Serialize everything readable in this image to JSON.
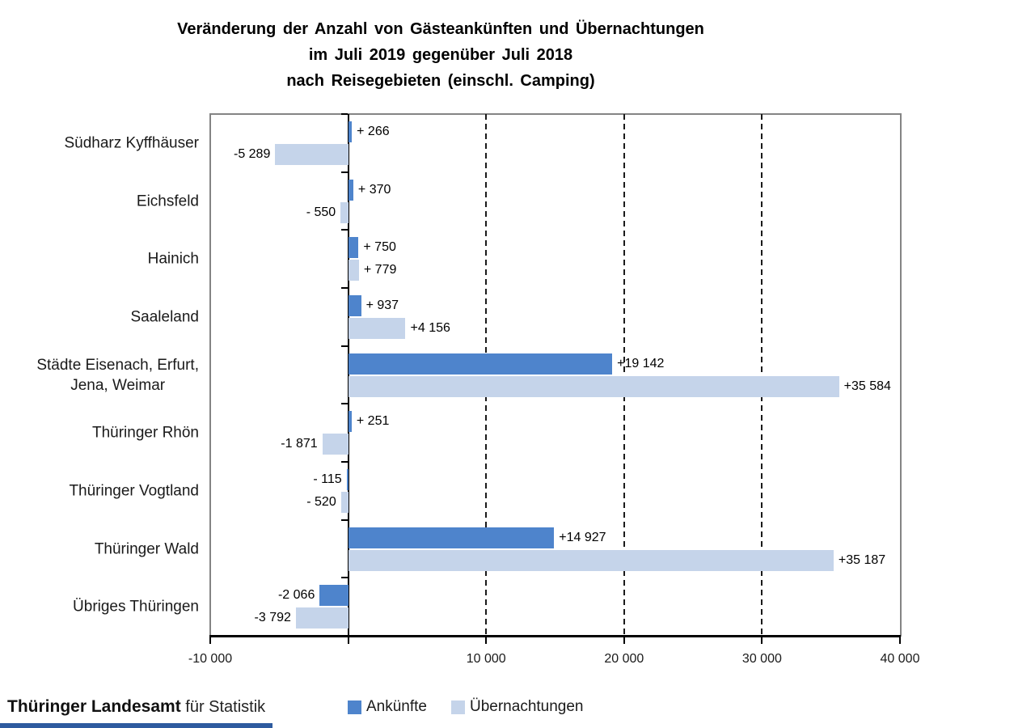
{
  "title": {
    "line1": "Veränderung der Anzahl von Gästeankünften und Übernachtungen",
    "line2": "im Juli 2019 gegenüber Juli 2018",
    "line3": "nach Reisegebieten (einschl. Camping)"
  },
  "chart_data": {
    "type": "bar",
    "orientation": "horizontal",
    "title": "Veränderung der Anzahl von Gästeankünften und Übernachtungen im Juli 2019 gegenüber Juli 2018 nach Reisegebieten (einschl. Camping)",
    "categories": [
      "Südharz Kyffhäuser",
      "Eichsfeld",
      "Hainich",
      "Saaleland",
      "Städte Eisenach, Erfurt,\nJena, Weimar",
      "Thüringer Rhön",
      "Thüringer Vogtland",
      "Thüringer Wald",
      "Übriges Thüringen"
    ],
    "series": [
      {
        "name": "Ankünfte",
        "color": "#4e84cc",
        "values": [
          266,
          370,
          750,
          937,
          19142,
          251,
          -115,
          14927,
          -2066
        ],
        "labels": [
          "+ 266",
          "+ 370",
          "+ 750",
          "+ 937",
          "+19 142",
          "+ 251",
          "- 115",
          "+14 927",
          "-2 066"
        ]
      },
      {
        "name": "Übernachtungen",
        "color": "#c5d4ea",
        "values": [
          -5289,
          -550,
          779,
          4156,
          35584,
          -1871,
          -520,
          35187,
          -3792
        ],
        "labels": [
          "-5 289",
          "- 550",
          "+ 779",
          "+4 156",
          "+35 584",
          "-1 871",
          "- 520",
          "+35 187",
          "-3 792"
        ]
      }
    ],
    "x_axis": {
      "range": [
        -10000,
        40000
      ],
      "ticks": [
        -10000,
        0,
        10000,
        20000,
        30000,
        40000
      ],
      "tick_labels": [
        "-10 000",
        "",
        "10 000",
        "20 000",
        "30 000",
        "40 000"
      ],
      "gridlines_at": [
        10000,
        20000,
        30000
      ]
    },
    "legend": [
      "Ankünfte",
      "Übernachtungen"
    ],
    "legend_position": "bottom"
  },
  "footer": {
    "org_bold": "Thüringer Landesamt",
    "org_rest": " für Statistik",
    "accent_bar_color": "#2e5b9f"
  }
}
